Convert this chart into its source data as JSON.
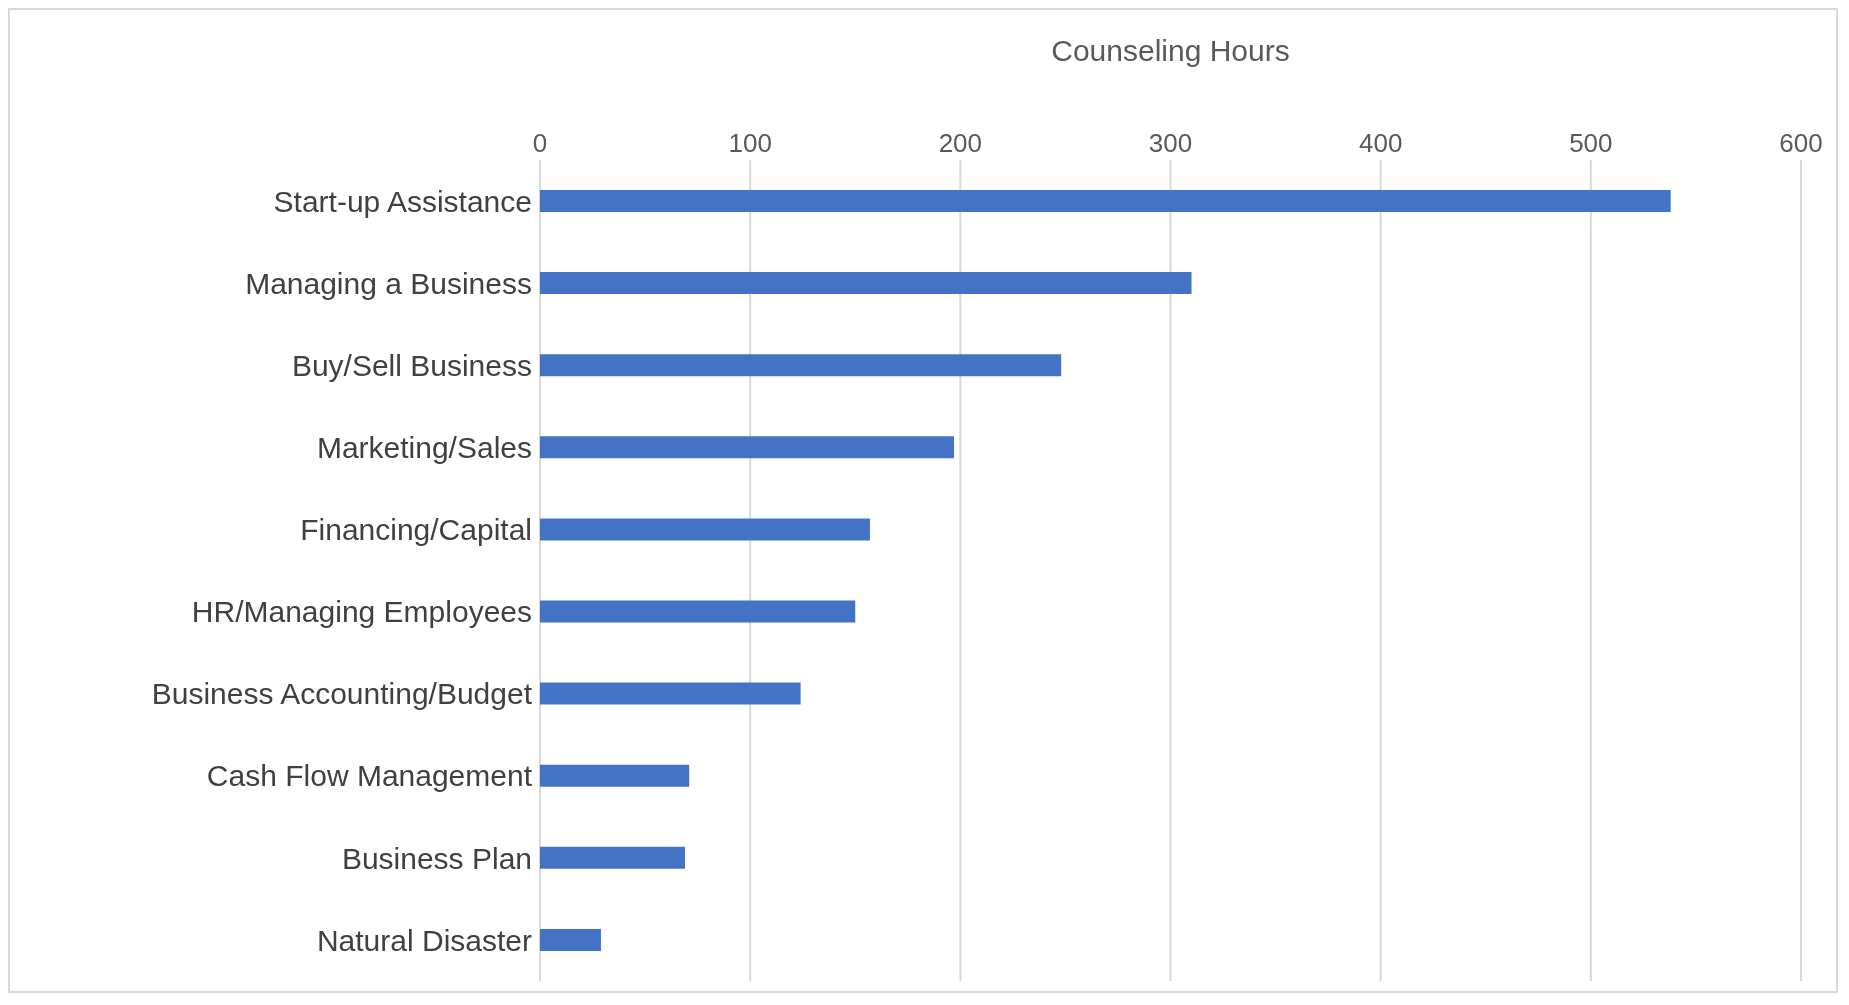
{
  "chart_data": {
    "type": "bar",
    "orientation": "horizontal",
    "xlabel": "Counseling Hours",
    "categories": [
      "Start-up Assistance",
      "Managing a Business",
      "Buy/Sell Business",
      "Marketing/Sales",
      "Financing/Capital",
      "HR/Managing Employees",
      "Business Accounting/Budget",
      "Cash Flow Management",
      "Business Plan",
      "Natural Disaster"
    ],
    "values": [
      538,
      310,
      248,
      197,
      157,
      150,
      124,
      71,
      69,
      29
    ],
    "color": "#4472c4",
    "xlim": [
      0,
      600
    ],
    "xticks": [
      0,
      100,
      200,
      300,
      400,
      500,
      600
    ],
    "grid": "x"
  }
}
